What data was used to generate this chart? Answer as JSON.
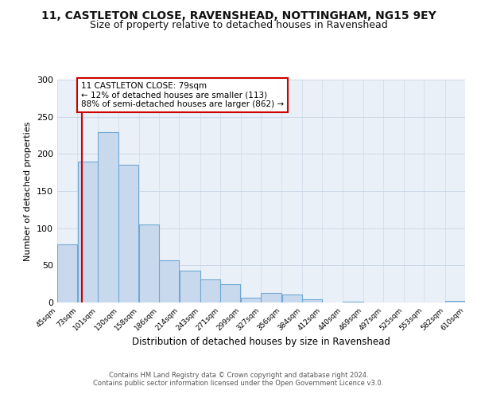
{
  "title": "11, CASTLETON CLOSE, RAVENSHEAD, NOTTINGHAM, NG15 9EY",
  "subtitle": "Size of property relative to detached houses in Ravenshead",
  "xlabel": "Distribution of detached houses by size in Ravenshead",
  "ylabel": "Number of detached properties",
  "bin_edges": [
    45,
    73,
    101,
    130,
    158,
    186,
    214,
    243,
    271,
    299,
    327,
    356,
    384,
    412,
    440,
    469,
    497,
    525,
    553,
    582,
    610
  ],
  "bar_heights": [
    78,
    190,
    229,
    185,
    105,
    57,
    43,
    31,
    25,
    6,
    13,
    11,
    4,
    0,
    1,
    0,
    0,
    0,
    0,
    2
  ],
  "bar_color": "#c9d9ed",
  "bar_edge_color": "#6fa8d4",
  "property_line_x": 79,
  "property_line_color": "#cc0000",
  "annotation_text": "11 CASTLETON CLOSE: 79sqm\n← 12% of detached houses are smaller (113)\n88% of semi-detached houses are larger (862) →",
  "annotation_box_color": "#ffffff",
  "annotation_box_edge_color": "#cc0000",
  "ylim": [
    0,
    300
  ],
  "yticks": [
    0,
    50,
    100,
    150,
    200,
    250,
    300
  ],
  "footer_line1": "Contains HM Land Registry data © Crown copyright and database right 2024.",
  "footer_line2": "Contains public sector information licensed under the Open Government Licence v3.0.",
  "bg_color": "#ffffff",
  "plot_bg_color": "#eaf0f8",
  "title_fontsize": 10,
  "subtitle_fontsize": 9,
  "tick_labels": [
    "45sqm",
    "73sqm",
    "101sqm",
    "130sqm",
    "158sqm",
    "186sqm",
    "214sqm",
    "243sqm",
    "271sqm",
    "299sqm",
    "327sqm",
    "356sqm",
    "384sqm",
    "412sqm",
    "440sqm",
    "469sqm",
    "497sqm",
    "525sqm",
    "553sqm",
    "582sqm",
    "610sqm"
  ]
}
